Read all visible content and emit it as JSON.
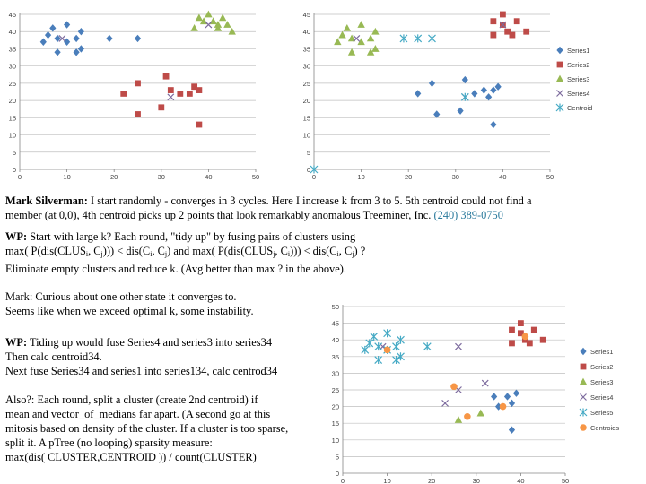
{
  "colors": {
    "series1": "#4a7ebb",
    "series2": "#be4b48",
    "series3": "#98b954",
    "series4": "#7d6b9e",
    "centroid": "#46aac5",
    "centroids_orange": "#f79646"
  },
  "chart_data": [
    {
      "type": "scatter",
      "title": "",
      "xlim": [
        0,
        50
      ],
      "ylim": [
        0,
        45
      ],
      "xticks": [
        "0",
        "10",
        "20",
        "30",
        "40",
        "50"
      ],
      "yticks": [
        "0",
        "5",
        "10",
        "15",
        "20",
        "25",
        "30",
        "35",
        "40",
        "45"
      ],
      "legend": "none",
      "series": [
        {
          "name": "Series1",
          "marker": "diamond",
          "color": "#4a7ebb",
          "points": [
            [
              5,
              37
            ],
            [
              6,
              39
            ],
            [
              7,
              41
            ],
            [
              8,
              34
            ],
            [
              8,
              38
            ],
            [
              10,
              42
            ],
            [
              10,
              37
            ],
            [
              12,
              34
            ],
            [
              12,
              38
            ],
            [
              13,
              40
            ],
            [
              13,
              35
            ],
            [
              19,
              38
            ],
            [
              25,
              38
            ]
          ]
        },
        {
          "name": "Series2",
          "marker": "square",
          "color": "#be4b48",
          "points": [
            [
              22,
              22
            ],
            [
              25,
              25
            ],
            [
              25,
              16
            ],
            [
              30,
              18
            ],
            [
              31,
              27
            ],
            [
              32,
              23
            ],
            [
              34,
              22
            ],
            [
              36,
              22
            ],
            [
              37,
              24
            ],
            [
              38,
              13
            ],
            [
              38,
              23
            ]
          ]
        },
        {
          "name": "Series3",
          "marker": "triangle",
          "color": "#98b954",
          "points": [
            [
              37,
              41
            ],
            [
              38,
              44
            ],
            [
              39,
              43
            ],
            [
              40,
              45
            ],
            [
              41,
              43
            ],
            [
              42,
              41
            ],
            [
              42,
              42
            ],
            [
              43,
              44
            ],
            [
              44,
              42
            ],
            [
              45,
              40
            ]
          ]
        },
        {
          "name": "Series4",
          "marker": "x",
          "color": "#7d6b9e",
          "points": [
            [
              9,
              38
            ],
            [
              32,
              21
            ],
            [
              40,
              42
            ]
          ]
        }
      ]
    },
    {
      "type": "scatter",
      "title": "",
      "xlim": [
        0,
        50
      ],
      "ylim": [
        0,
        45
      ],
      "xticks": [
        "0",
        "10",
        "20",
        "30",
        "40",
        "50"
      ],
      "yticks": [
        "0",
        "5",
        "10",
        "15",
        "20",
        "25",
        "30",
        "35",
        "40",
        "45"
      ],
      "legend": "right",
      "series": [
        {
          "name": "Series1",
          "marker": "diamond",
          "color": "#4a7ebb",
          "points": [
            [
              22,
              22
            ],
            [
              25,
              25
            ],
            [
              26,
              16
            ],
            [
              31,
              17
            ],
            [
              32,
              26
            ],
            [
              34,
              22
            ],
            [
              36,
              23
            ],
            [
              37,
              21
            ],
            [
              38,
              13
            ],
            [
              38,
              23
            ],
            [
              39,
              24
            ]
          ]
        },
        {
          "name": "Series2",
          "marker": "square",
          "color": "#be4b48",
          "points": [
            [
              38,
              39
            ],
            [
              38,
              43
            ],
            [
              40,
              45
            ],
            [
              41,
              40
            ],
            [
              42,
              39
            ],
            [
              43,
              43
            ],
            [
              45,
              40
            ],
            [
              40,
              42
            ]
          ]
        },
        {
          "name": "Series3",
          "marker": "triangle",
          "color": "#98b954",
          "points": [
            [
              5,
              37
            ],
            [
              6,
              39
            ],
            [
              7,
              41
            ],
            [
              8,
              34
            ],
            [
              8,
              38
            ],
            [
              10,
              42
            ],
            [
              10,
              37
            ],
            [
              12,
              34
            ],
            [
              12,
              38
            ],
            [
              13,
              40
            ],
            [
              13,
              35
            ]
          ]
        },
        {
          "name": "Series4",
          "marker": "x",
          "color": "#7d6b9e",
          "points": [
            [
              9,
              38
            ],
            [
              32,
              21
            ],
            [
              40,
              42
            ]
          ]
        },
        {
          "name": "Centroid",
          "marker": "asterisk",
          "color": "#46aac5",
          "points": [
            [
              0,
              0
            ],
            [
              19,
              38
            ],
            [
              22,
              38
            ],
            [
              25,
              38
            ],
            [
              32,
              21
            ]
          ]
        }
      ]
    },
    {
      "type": "scatter",
      "title": "",
      "xlim": [
        0,
        50
      ],
      "ylim": [
        0,
        50
      ],
      "xticks": [
        "0",
        "10",
        "20",
        "30",
        "40",
        "50"
      ],
      "yticks": [
        "0",
        "5",
        "10",
        "15",
        "20",
        "25",
        "30",
        "35",
        "40",
        "45",
        "50"
      ],
      "legend": "right",
      "series": [
        {
          "name": "Series1",
          "marker": "diamond",
          "color": "#4a7ebb",
          "points": [
            [
              34,
              23
            ],
            [
              35,
              20
            ],
            [
              37,
              23
            ],
            [
              38,
              21
            ],
            [
              38,
              13
            ],
            [
              39,
              24
            ]
          ]
        },
        {
          "name": "Series2",
          "marker": "square",
          "color": "#be4b48",
          "points": [
            [
              38,
              39
            ],
            [
              38,
              43
            ],
            [
              40,
              45
            ],
            [
              41,
              40
            ],
            [
              42,
              39
            ],
            [
              43,
              43
            ],
            [
              45,
              40
            ],
            [
              40,
              42
            ]
          ]
        },
        {
          "name": "Series3",
          "marker": "triangle",
          "color": "#98b954",
          "points": [
            [
              26,
              16
            ],
            [
              31,
              18
            ]
          ]
        },
        {
          "name": "Series4",
          "marker": "x",
          "color": "#7d6b9e",
          "points": [
            [
              9,
              38
            ],
            [
              23,
              21
            ],
            [
              26,
              38
            ],
            [
              26,
              25
            ],
            [
              32,
              27
            ]
          ]
        },
        {
          "name": "Series5",
          "marker": "asterisk",
          "color": "#46aac5",
          "points": [
            [
              5,
              37
            ],
            [
              6,
              39
            ],
            [
              7,
              41
            ],
            [
              8,
              34
            ],
            [
              8,
              38
            ],
            [
              10,
              42
            ],
            [
              10,
              37
            ],
            [
              12,
              34
            ],
            [
              12,
              38
            ],
            [
              13,
              40
            ],
            [
              13,
              35
            ],
            [
              19,
              38
            ]
          ]
        },
        {
          "name": "Centroids",
          "marker": "circle",
          "color": "#f79646",
          "points": [
            [
              10,
              37
            ],
            [
              25,
              26
            ],
            [
              28,
              17
            ],
            [
              36,
              20
            ],
            [
              41,
              41
            ]
          ]
        }
      ]
    }
  ],
  "text": {
    "p1_name": "Mark Silverman:",
    "p1_line1": " I start randomly - converges in 3 cycles.       Here I increase k from 3 to 5.  5th centroid could not find a",
    "p1_line2": "member (at 0,0), 4th centroid picks up 2 points that look remarkably anomalous  Treeminer, Inc.   ",
    "p1_link": "(240) 389-0750",
    "wp_label": "WP:",
    "wp_line1": " Start with large k?  Each round, \"tidy up\" by fusing pairs of clusters using",
    "wp_line2": "max( P(dis(CLUSi, Cj))) < dis(Ci, Cj) and max( P(dis(CLUSj, Ci))) < dis(Ci, Cj) ?",
    "wp_line3": "Eliminate empty clusters and reduce k.  (Avg better than max ? in the above).",
    "mark_line1": "Mark: Curious about one other state it converges to.",
    "mark_line2": "Seems like when we exceed optimal k, some instability.",
    "tidy_label": "WP:",
    "tidy_line1": " Tiding up would fuse Series4 and series3 into series34",
    "tidy_line2": "Then calc centroid34.",
    "tidy_line3": "Next fuse Series34 and series1 into series134, calc centrod34",
    "also_line1": "Also?: Each round, split a cluster (create 2nd centroid) if",
    "also_line2": "mean and vector_of_medians far apart. (A second go at this",
    "also_line3": "mitosis based on density of the cluster.  If a cluster is too sparse,",
    "also_line4": "split it. A pTree (no looping) sparsity measure:",
    "also_line5": "max(dis( CLUSTER,CENTROID )) / count(CLUSTER)"
  }
}
